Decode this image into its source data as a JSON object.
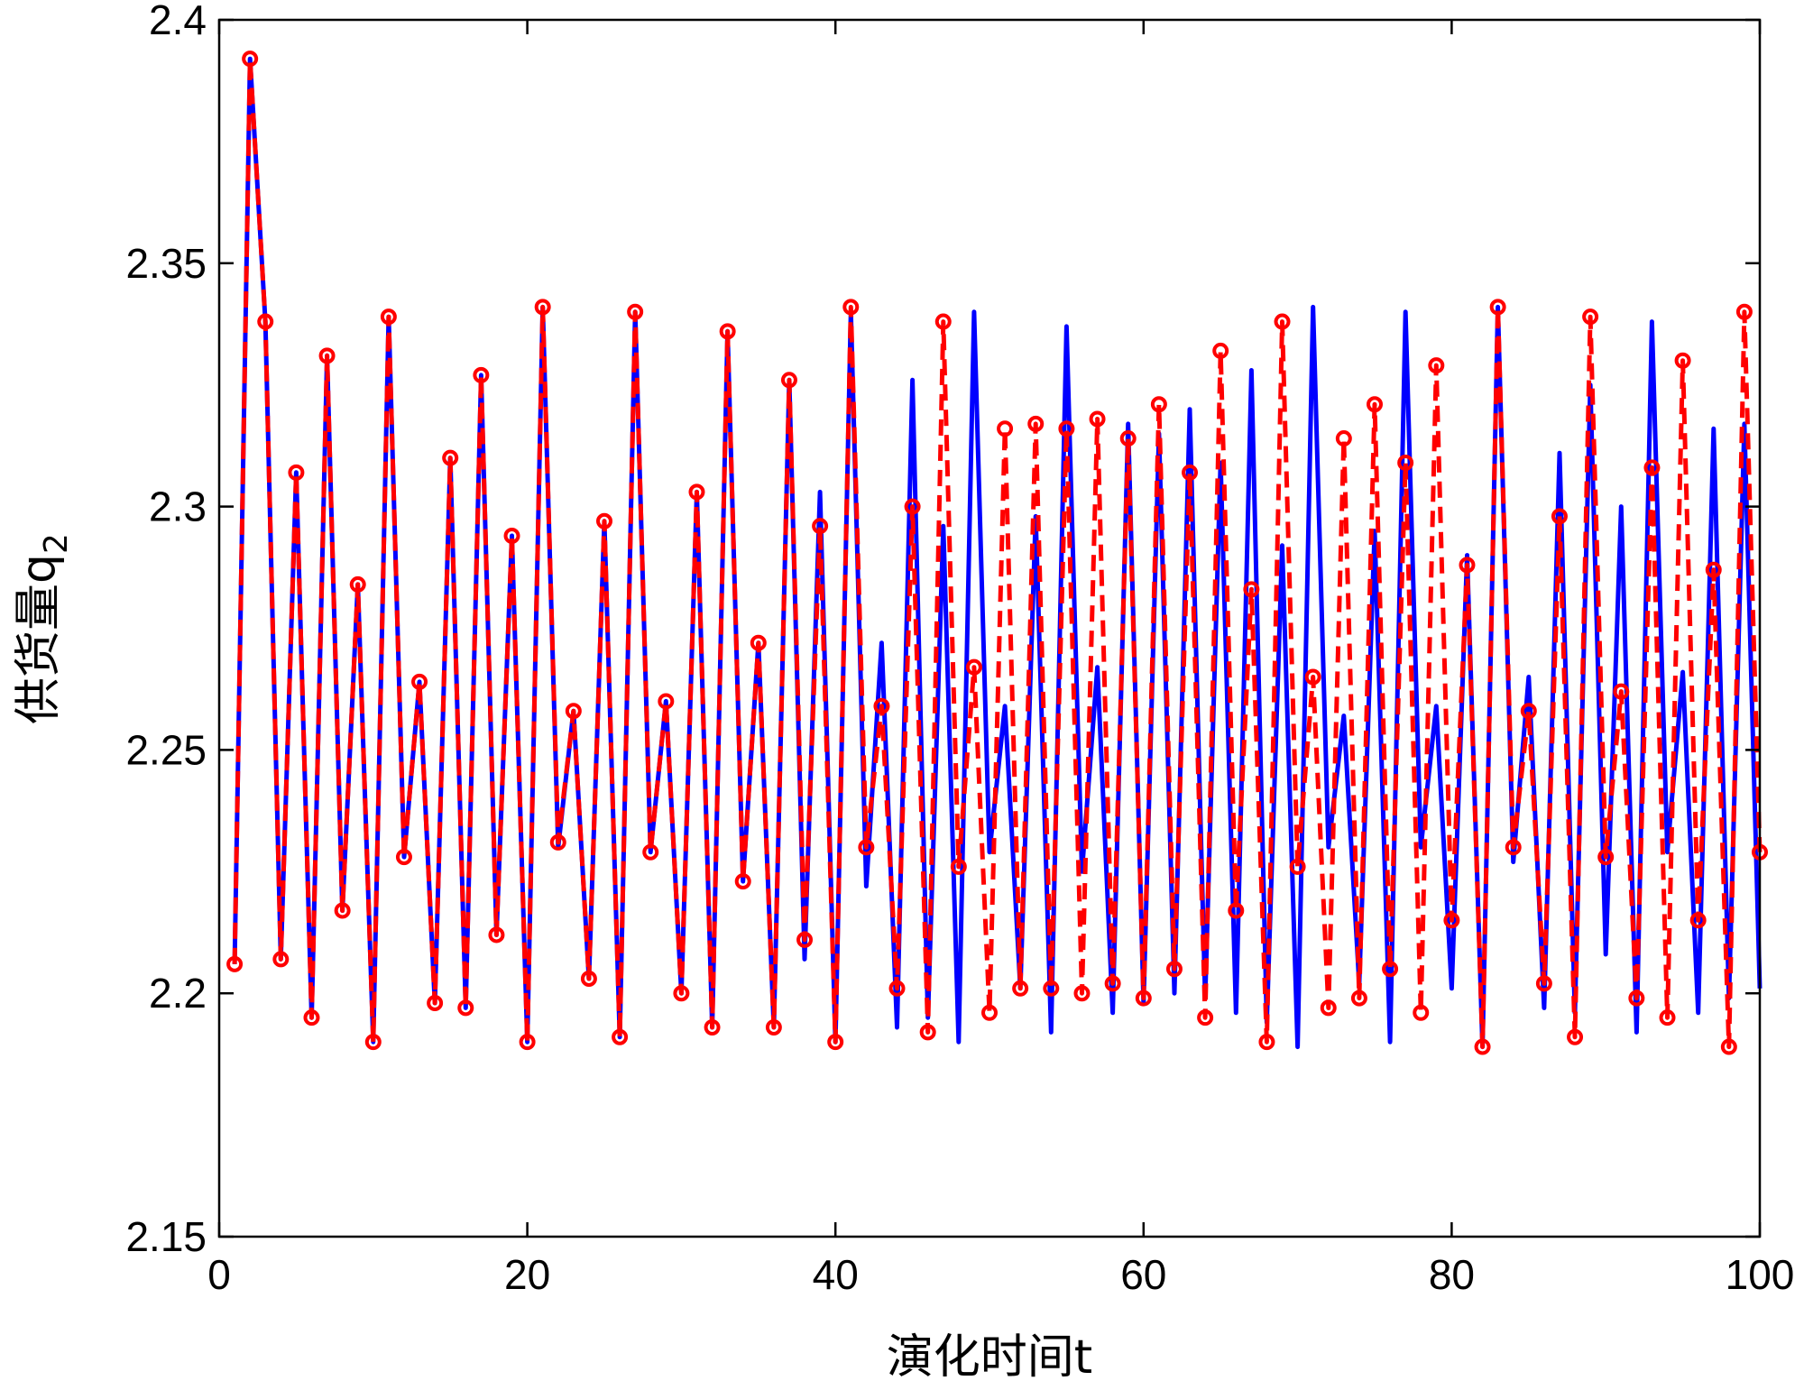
{
  "chart_data": {
    "type": "line",
    "title": "",
    "xlabel": "演化时间t",
    "ylabel": "供货量",
    "ylabel_symbol": "q",
    "ylabel_subscript": "2",
    "xlim": [
      0,
      100
    ],
    "ylim": [
      2.15,
      2.4
    ],
    "xticks": [
      0,
      20,
      40,
      60,
      80,
      100
    ],
    "yticks": [
      2.15,
      2.2,
      2.25,
      2.3,
      2.35,
      2.4
    ],
    "xtick_labels": [
      "0",
      "20",
      "40",
      "60",
      "80",
      "100"
    ],
    "ytick_labels": [
      "2.15",
      "2.2",
      "2.25",
      "2.3",
      "2.35",
      "2.4"
    ],
    "grid": false,
    "series": [
      {
        "name": "blue-solid",
        "color": "#0000ff",
        "line_style": "solid",
        "marker": "none",
        "x": [
          1,
          2,
          3,
          4,
          5,
          6,
          7,
          8,
          9,
          10,
          11,
          12,
          13,
          14,
          15,
          16,
          17,
          18,
          19,
          20,
          21,
          22,
          23,
          24,
          25,
          26,
          27,
          28,
          29,
          30,
          31,
          32,
          33,
          34,
          35,
          36,
          37,
          38,
          39,
          40,
          41,
          42,
          43,
          44,
          45,
          46,
          47,
          48,
          49,
          50,
          51,
          52,
          53,
          54,
          55,
          56,
          57,
          58,
          59,
          60,
          61,
          62,
          63,
          64,
          65,
          66,
          67,
          68,
          69,
          70,
          71,
          72,
          73,
          74,
          75,
          76,
          77,
          78,
          79,
          80,
          81,
          82,
          83,
          84,
          85,
          86,
          87,
          88,
          89,
          90,
          91,
          92,
          93,
          94,
          95,
          96,
          97,
          98,
          99,
          100
        ],
        "values": [
          2.206,
          2.392,
          2.338,
          2.207,
          2.307,
          2.195,
          2.331,
          2.217,
          2.284,
          2.19,
          2.339,
          2.228,
          2.264,
          2.198,
          2.31,
          2.197,
          2.327,
          2.212,
          2.294,
          2.19,
          2.341,
          2.23,
          2.258,
          2.203,
          2.297,
          2.191,
          2.34,
          2.229,
          2.26,
          2.2,
          2.303,
          2.193,
          2.336,
          2.223,
          2.272,
          2.193,
          2.326,
          2.207,
          2.303,
          2.19,
          2.34,
          2.222,
          2.272,
          2.193,
          2.326,
          2.195,
          2.296,
          2.19,
          2.34,
          2.229,
          2.259,
          2.201,
          2.298,
          2.192,
          2.337,
          2.225,
          2.267,
          2.196,
          2.317,
          2.198,
          2.315,
          2.2,
          2.32,
          2.199,
          2.309,
          2.196,
          2.328,
          2.194,
          2.292,
          2.189,
          2.341,
          2.23,
          2.257,
          2.202,
          2.295,
          2.19,
          2.34,
          2.23,
          2.259,
          2.201,
          2.29,
          2.189,
          2.341,
          2.227,
          2.265,
          2.197,
          2.311,
          2.196,
          2.325,
          2.208,
          2.3,
          2.192,
          2.338,
          2.229,
          2.266,
          2.196,
          2.316,
          2.199,
          2.317,
          2.201
        ]
      },
      {
        "name": "red-dashed-circles",
        "color": "#ff0000",
        "line_style": "dashed",
        "marker": "circle",
        "x": [
          1,
          2,
          3,
          4,
          5,
          6,
          7,
          8,
          9,
          10,
          11,
          12,
          13,
          14,
          15,
          16,
          17,
          18,
          19,
          20,
          21,
          22,
          23,
          24,
          25,
          26,
          27,
          28,
          29,
          30,
          31,
          32,
          33,
          34,
          35,
          36,
          37,
          38,
          39,
          40,
          41,
          42,
          43,
          44,
          45,
          46,
          47,
          48,
          49,
          50,
          51,
          52,
          53,
          54,
          55,
          56,
          57,
          58,
          59,
          60,
          61,
          62,
          63,
          64,
          65,
          66,
          67,
          68,
          69,
          70,
          71,
          72,
          73,
          74,
          75,
          76,
          77,
          78,
          79,
          80,
          81,
          82,
          83,
          84,
          85,
          86,
          87,
          88,
          89,
          90,
          91,
          92,
          93,
          94,
          95,
          96,
          97,
          98,
          99,
          100
        ],
        "values": [
          2.206,
          2.392,
          2.338,
          2.207,
          2.307,
          2.195,
          2.331,
          2.217,
          2.284,
          2.19,
          2.339,
          2.228,
          2.264,
          2.198,
          2.31,
          2.197,
          2.327,
          2.212,
          2.294,
          2.19,
          2.341,
          2.231,
          2.258,
          2.203,
          2.297,
          2.191,
          2.34,
          2.229,
          2.26,
          2.2,
          2.303,
          2.193,
          2.336,
          2.223,
          2.272,
          2.193,
          2.326,
          2.211,
          2.296,
          2.19,
          2.341,
          2.23,
          2.259,
          2.201,
          2.3,
          2.192,
          2.338,
          2.226,
          2.267,
          2.196,
          2.316,
          2.201,
          2.317,
          2.201,
          2.316,
          2.2,
          2.318,
          2.202,
          2.314,
          2.199,
          2.321,
          2.205,
          2.307,
          2.195,
          2.332,
          2.217,
          2.283,
          2.19,
          2.338,
          2.226,
          2.265,
          2.197,
          2.314,
          2.199,
          2.321,
          2.205,
          2.309,
          2.196,
          2.329,
          2.215,
          2.288,
          2.189,
          2.341,
          2.23,
          2.258,
          2.202,
          2.298,
          2.191,
          2.339,
          2.228,
          2.262,
          2.199,
          2.308,
          2.195,
          2.33,
          2.215,
          2.287,
          2.189,
          2.34,
          2.229
        ]
      }
    ]
  }
}
